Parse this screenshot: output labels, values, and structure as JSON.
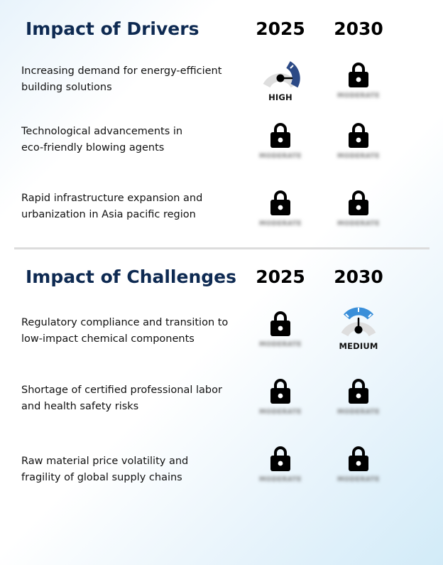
{
  "drivers": {
    "title": "Impact of Drivers",
    "year_1": "2025",
    "year_2": "2030",
    "rows": [
      {
        "line1": "Increasing demand for energy-efficient",
        "line2": "building solutions",
        "y2025": {
          "state": "gauge",
          "level": "HIGH",
          "color": "#2c4a86"
        },
        "y2030": {
          "state": "locked",
          "icon": "lock-icon",
          "placeholder": "MODERATE"
        }
      },
      {
        "line1": "Technological advancements in",
        "line2": "eco-friendly blowing agents",
        "y2025": {
          "state": "locked",
          "icon": "lock-icon",
          "placeholder": "MODERATE"
        },
        "y2030": {
          "state": "locked",
          "icon": "lock-icon",
          "placeholder": "MODERATE"
        }
      },
      {
        "line1": "Rapid infrastructure expansion and",
        "line2": "urbanization in Asia pacific region",
        "y2025": {
          "state": "locked",
          "icon": "lock-icon",
          "placeholder": "MODERATE"
        },
        "y2030": {
          "state": "locked",
          "icon": "lock-icon",
          "placeholder": "MODERATE"
        }
      }
    ]
  },
  "challenges": {
    "title": "Impact of Challenges",
    "year_1": "2025",
    "year_2": "2030",
    "rows": [
      {
        "line1": "Regulatory compliance and transition to",
        "line2": "low-impact chemical components",
        "y2025": {
          "state": "locked",
          "icon": "lock-icon",
          "placeholder": "MODERATE"
        },
        "y2030": {
          "state": "gauge",
          "level": "MEDIUM",
          "color": "#3a8fd9"
        }
      },
      {
        "line1": "Shortage of certified professional labor",
        "line2": "and health safety risks",
        "y2025": {
          "state": "locked",
          "icon": "lock-icon",
          "placeholder": "MODERATE"
        },
        "y2030": {
          "state": "locked",
          "icon": "lock-icon",
          "placeholder": "MODERATE"
        }
      },
      {
        "line1": "Raw material price volatility and",
        "line2": "fragility of global supply chains",
        "y2025": {
          "state": "locked",
          "icon": "lock-icon",
          "placeholder": "MODERATE"
        },
        "y2030": {
          "state": "locked",
          "icon": "lock-icon",
          "placeholder": "MODERATE"
        }
      }
    ]
  },
  "colors": {
    "title": "#0e2a52",
    "gauge_track": "#dedede"
  }
}
